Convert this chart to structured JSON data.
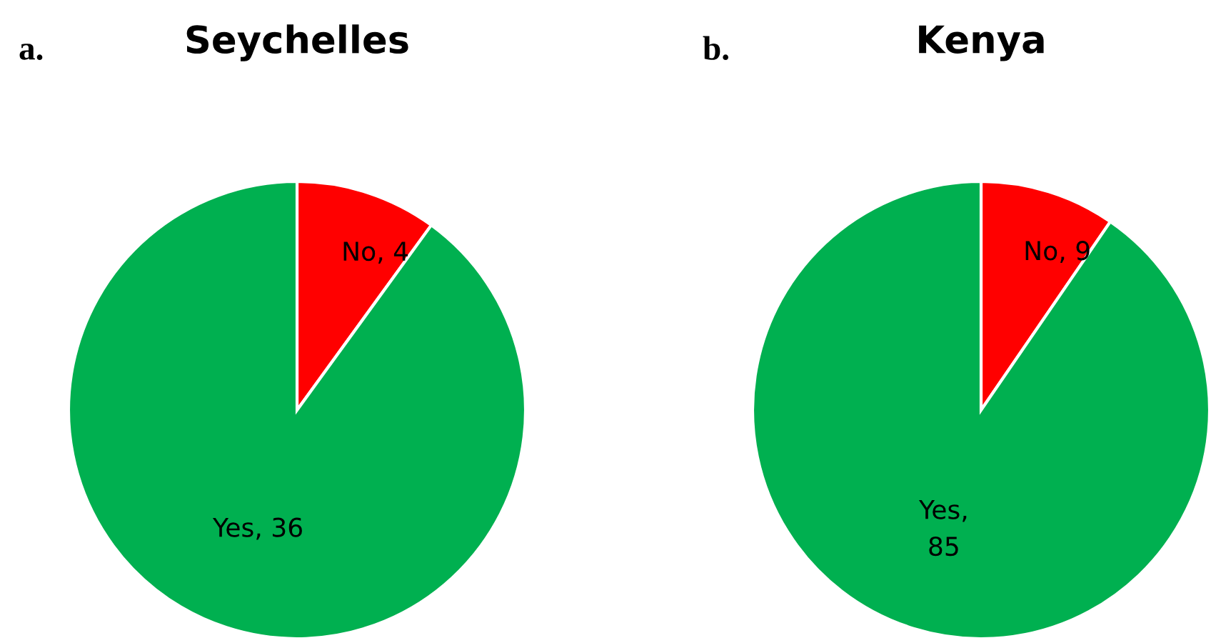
{
  "chart_data": [
    {
      "type": "pie",
      "title": "Seychelles",
      "annotations": [
        "a."
      ],
      "values": [
        4,
        36
      ],
      "colors": [
        "#ff0000",
        "#00b050"
      ],
      "value_labels": [
        "No, 4",
        "Yes, 36"
      ]
    },
    {
      "type": "pie",
      "title": "Kenya",
      "annotations": [
        "b."
      ],
      "values": [
        9,
        85
      ],
      "colors": [
        "#ff0000",
        "#00b050"
      ],
      "value_labels": [
        "No, 9",
        "Yes,\n85"
      ]
    }
  ]
}
